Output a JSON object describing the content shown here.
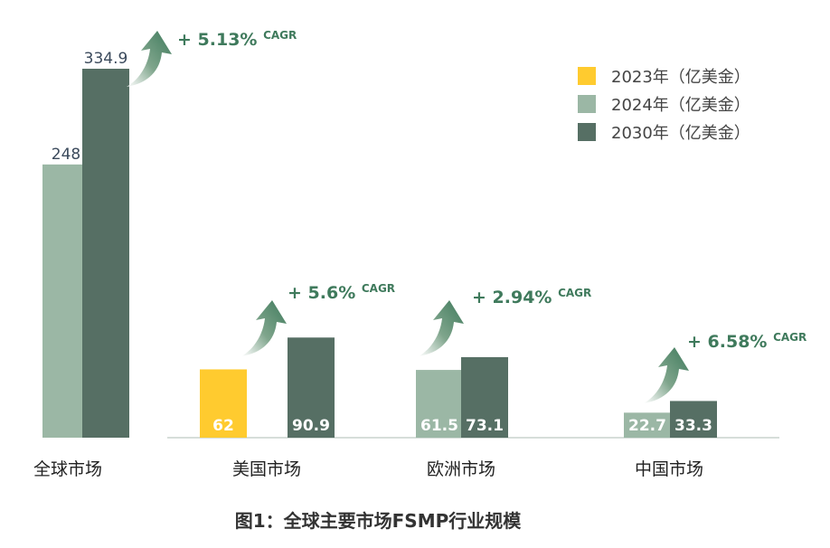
{
  "chart_data": {
    "type": "bar",
    "title": "图1：全球主要市场FSMP行业规模",
    "categories": [
      "全球市场",
      "美国市场",
      "欧洲市场",
      "中国市场"
    ],
    "series": [
      {
        "name": "2023年（亿美金）",
        "color": "#ffcb2f",
        "values": [
          null,
          62,
          null,
          null
        ]
      },
      {
        "name": "2024年（亿美金）",
        "color": "#9bb7a5",
        "values": [
          248,
          null,
          61.5,
          22.7
        ]
      },
      {
        "name": "2030年（亿美金）",
        "color": "#566f64",
        "values": [
          334.9,
          90.9,
          73.1,
          33.3
        ]
      }
    ],
    "value_labels": [
      [
        "",
        "248",
        "334.9"
      ],
      [
        "62",
        "",
        "90.9"
      ],
      [
        "",
        "61.5",
        "73.1"
      ],
      [
        "",
        "22.7",
        "33.3"
      ]
    ],
    "cagr": [
      {
        "value": "+ 5.13%",
        "suffix": "CAGR"
      },
      {
        "value": "+ 5.6%",
        "suffix": "CAGR"
      },
      {
        "value": "+ 2.94%",
        "suffix": "CAGR"
      },
      {
        "value": "+ 6.58%",
        "suffix": "CAGR"
      }
    ],
    "legend_position": "top-right",
    "grid": false,
    "accent_color": "#3f7a5c"
  }
}
